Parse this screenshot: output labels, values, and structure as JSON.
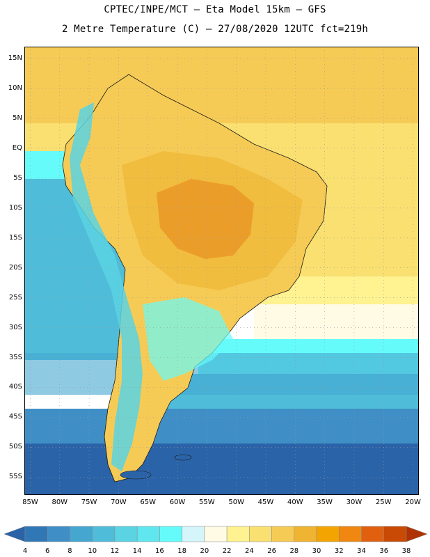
{
  "header": {
    "title_line1": "CPTEC/INPE/MCT –  Eta Model 15km – GFS",
    "title_line2": "2 Metre Temperature (C) – 27/08/2020 12UTC fct=219h"
  },
  "map": {
    "lat_labels": [
      "15N",
      "10N",
      "5N",
      "EQ",
      "5S",
      "10S",
      "15S",
      "20S",
      "25S",
      "30S",
      "35S",
      "40S",
      "45S",
      "50S",
      "55S"
    ],
    "lon_labels": [
      "85W",
      "80W",
      "75W",
      "70W",
      "65W",
      "60W",
      "55W",
      "50W",
      "45W",
      "40W",
      "35W",
      "30W",
      "25W",
      "20W"
    ],
    "lat_range": [
      17,
      -58
    ],
    "lon_range": [
      -86,
      -19
    ]
  },
  "legend": {
    "labels": [
      "4",
      "6",
      "8",
      "10",
      "12",
      "14",
      "16",
      "18",
      "20",
      "22",
      "24",
      "26",
      "28",
      "30",
      "32",
      "34",
      "36",
      "38"
    ],
    "colors": [
      "#2a63a8",
      "#3077b6",
      "#3f8fc6",
      "#45a6d0",
      "#4fbdd9",
      "#5ad3e3",
      "#60e6ee",
      "#66fbfb",
      "#d4f6fb",
      "#fffbe4",
      "#fff291",
      "#f9e071",
      "#f6cb55",
      "#efb431",
      "#f4a400",
      "#ef8710",
      "#e06010",
      "#c84a04",
      "#b03202"
    ]
  }
}
